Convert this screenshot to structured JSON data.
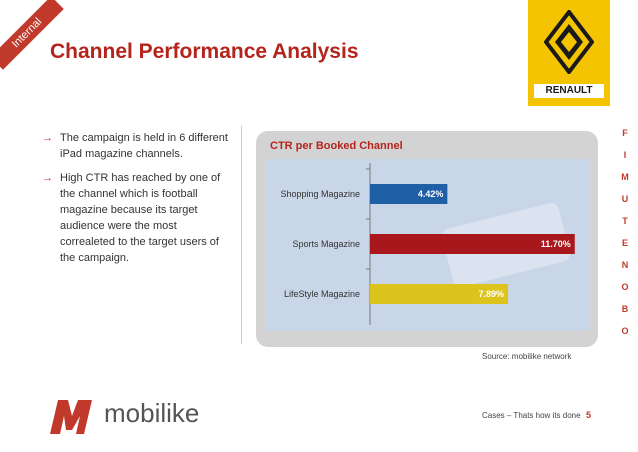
{
  "ribbon": {
    "label": "Internal"
  },
  "page": {
    "title": "Channel Performance Analysis"
  },
  "logo": {
    "text": "RENAULT",
    "color": "#f5c400"
  },
  "side_nav": {
    "letters": [
      "F",
      "I",
      "M",
      "U",
      "T",
      "E",
      "N",
      "O",
      "B",
      "O"
    ]
  },
  "bullets": [
    "The campaign is held in 6 different iPad magazine channels.",
    "High CTR has reached by one of the channel which is football magazine because its target audience were the most correaleted to the target users of the campaign."
  ],
  "chart_data": {
    "type": "bar",
    "orientation": "horizontal",
    "title": "CTR per Booked Channel",
    "categories": [
      "Shopping Magazine",
      "Sports Magazine",
      "LifeStyle Magazine"
    ],
    "values": [
      4.42,
      11.7,
      7.89
    ],
    "data_labels": [
      "4.42%",
      "11.70%",
      "7.89%"
    ],
    "colors": [
      "#1f5fa6",
      "#a8171c",
      "#dcc41c"
    ],
    "xlim": [
      0,
      12
    ],
    "grid": false
  },
  "source": "Source: mobilike network",
  "brand": {
    "name": "mobilike",
    "color": "#c0392b"
  },
  "footer": {
    "text": "Cases – Thats how its  done",
    "page": "5"
  }
}
